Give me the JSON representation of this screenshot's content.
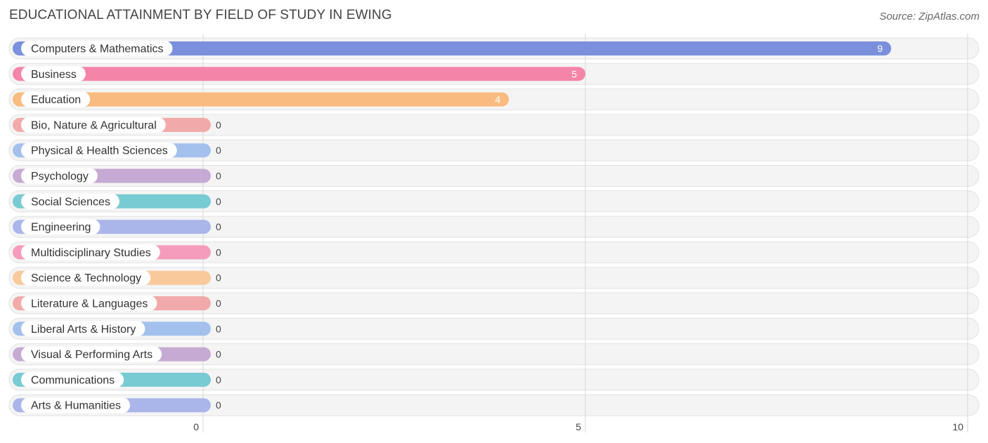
{
  "title": "EDUCATIONAL ATTAINMENT BY FIELD OF STUDY IN EWING",
  "source": "Source: ZipAtlas.com",
  "chart_data": {
    "type": "bar",
    "orientation": "horizontal",
    "title": "EDUCATIONAL ATTAINMENT BY FIELD OF STUDY IN EWING",
    "xlabel": "",
    "ylabel": "",
    "xlim": [
      0,
      10
    ],
    "xticks": [
      0,
      5,
      10
    ],
    "grid": true,
    "categories": [
      "Computers & Mathematics",
      "Business",
      "Education",
      "Bio, Nature & Agricultural",
      "Physical & Health Sciences",
      "Psychology",
      "Social Sciences",
      "Engineering",
      "Multidisciplinary Studies",
      "Science & Technology",
      "Literature & Languages",
      "Liberal Arts & History",
      "Visual & Performing Arts",
      "Communications",
      "Arts & Humanities"
    ],
    "values": [
      9,
      5,
      4,
      0,
      0,
      0,
      0,
      0,
      0,
      0,
      0,
      0,
      0,
      0,
      0
    ],
    "colors": [
      "#7b90dc",
      "#f584a9",
      "#f9bb7f",
      "#f1aaa9",
      "#a3c1ec",
      "#c6aad3",
      "#78cbd2",
      "#aab6ea",
      "#f59cbd",
      "#f9c99c",
      "#f1aaa9",
      "#a3c1ec",
      "#c6aad3",
      "#78cbd2",
      "#aab6ea"
    ]
  }
}
